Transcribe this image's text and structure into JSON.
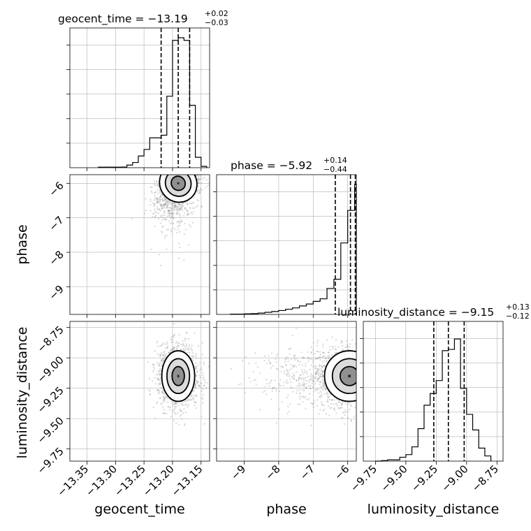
{
  "chart_data": {
    "type": "corner",
    "parameters": [
      "geocent_time",
      "phase",
      "luminosity_distance"
    ],
    "axis_labels": [
      "geocent_time",
      "phase",
      "luminosity_distance"
    ],
    "ranges": {
      "geocent_time": [
        -13.38,
        -13.135
      ],
      "phase": [
        -9.8,
        -5.75
      ],
      "luminosity_distance": [
        -9.85,
        -8.7
      ]
    },
    "ticks": {
      "geocent_time": [
        -13.35,
        -13.3,
        -13.25,
        -13.2,
        -13.15
      ],
      "phase": [
        -9,
        -8,
        -7,
        -6
      ],
      "luminosity_distance": [
        -9.75,
        -9.5,
        -9.25,
        -9.0,
        -8.75
      ]
    },
    "tick_labels": {
      "geocent_time": [
        "−13.35",
        "−13.30",
        "−13.25",
        "−13.20",
        "−13.15"
      ],
      "phase_x": [
        "−9",
        "−8",
        "−7",
        "−6"
      ],
      "phase_y": [
        "−6",
        "−7",
        "−8",
        "−9"
      ],
      "luminosity_distance": [
        "−9.75",
        "−9.50",
        "−9.25",
        "−9.00",
        "−8.75"
      ]
    },
    "titles": [
      {
        "param": "geocent_time",
        "text": "geocent_time = −13.19",
        "sup": "+0.02",
        "sub": "−0.03"
      },
      {
        "param": "phase",
        "text": "phase = −5.92",
        "sup": "+0.14",
        "sub": "−0.44"
      },
      {
        "param": "luminosity_distance",
        "text": "luminosity_distance = −9.15",
        "sup": "+0.13",
        "sub": "−0.12"
      }
    ],
    "quantiles": {
      "geocent_time": [
        -13.22,
        -13.19,
        -13.17
      ],
      "phase": [
        -6.36,
        -5.92,
        -5.78
      ],
      "luminosity_distance": [
        -9.27,
        -9.15,
        -9.02
      ]
    },
    "histograms": {
      "geocent_time": {
        "edges": [
          -13.33,
          -13.32,
          -13.31,
          -13.3,
          -13.29,
          -13.28,
          -13.27,
          -13.26,
          -13.25,
          -13.24,
          -13.23,
          -13.22,
          -13.21,
          -13.2,
          -13.19,
          -13.18,
          -13.17,
          -13.16,
          -13.15,
          -13.14
        ],
        "counts": [
          0.004,
          0.004,
          0.004,
          0.004,
          0.005,
          0.02,
          0.04,
          0.09,
          0.14,
          0.23,
          0.23,
          0.25,
          0.55,
          0.98,
          1.0,
          0.98,
          0.48,
          0.08,
          0.01
        ]
      },
      "phase": {
        "edges": [
          -9.4,
          -9.2,
          -9.0,
          -8.8,
          -8.6,
          -8.4,
          -8.2,
          -8.0,
          -7.8,
          -7.6,
          -7.4,
          -7.2,
          -7.0,
          -6.8,
          -6.6,
          -6.4,
          -6.2,
          -6.0,
          -5.8,
          -5.75
        ],
        "counts": [
          0.002,
          0.002,
          0.004,
          0.006,
          0.01,
          0.016,
          0.022,
          0.03,
          0.04,
          0.05,
          0.065,
          0.08,
          0.1,
          0.12,
          0.2,
          0.27,
          0.55,
          0.8,
          1.0
        ]
      },
      "luminosity_distance": {
        "edges": [
          -9.75,
          -9.7,
          -9.65,
          -9.6,
          -9.55,
          -9.5,
          -9.45,
          -9.4,
          -9.35,
          -9.3,
          -9.25,
          -9.2,
          -9.15,
          -9.1,
          -9.05,
          -9.0,
          -8.95,
          -8.9,
          -8.85,
          -8.8
        ],
        "counts": [
          0,
          0.004,
          0.01,
          0.01,
          0.03,
          0.05,
          0.11,
          0.25,
          0.43,
          0.52,
          0.62,
          0.85,
          0.86,
          0.94,
          0.56,
          0.36,
          0.24,
          0.1,
          0.04
        ]
      }
    },
    "scatter": {
      "phase_vs_geocent_time": {
        "center": [
          -13.19,
          -6.0
        ],
        "spread": [
          0.02,
          0.35
        ],
        "rho": 0.55
      },
      "luminosity_distance_vs_geocent_time": {
        "center": [
          -13.19,
          -9.15
        ],
        "spread": [
          0.018,
          0.13
        ],
        "rho": 0
      },
      "luminosity_distance_vs_phase": {
        "center": [
          -5.95,
          -9.15
        ],
        "spread": [
          0.45,
          0.13
        ],
        "rho": 0
      }
    },
    "contour_levels": [
      0.5,
      1.0,
      1.5,
      2.0
    ],
    "grid": true
  }
}
